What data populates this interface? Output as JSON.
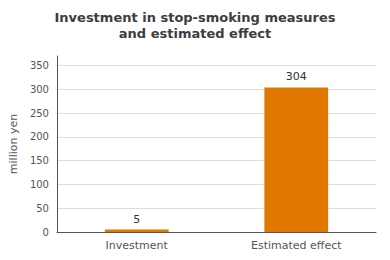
{
  "chart_data": {
    "type": "bar",
    "title": "Investment in stop-smoking measures\nand estimated effect",
    "categories": [
      "Investment",
      "Estimated effect"
    ],
    "values": [
      5,
      304
    ],
    "color": "#E07800",
    "ylabel": "million yen",
    "ylim": [
      0,
      370
    ],
    "yticks": [
      0,
      50,
      100,
      150,
      200,
      250,
      300,
      350
    ],
    "grid": true,
    "data_labels": true
  }
}
